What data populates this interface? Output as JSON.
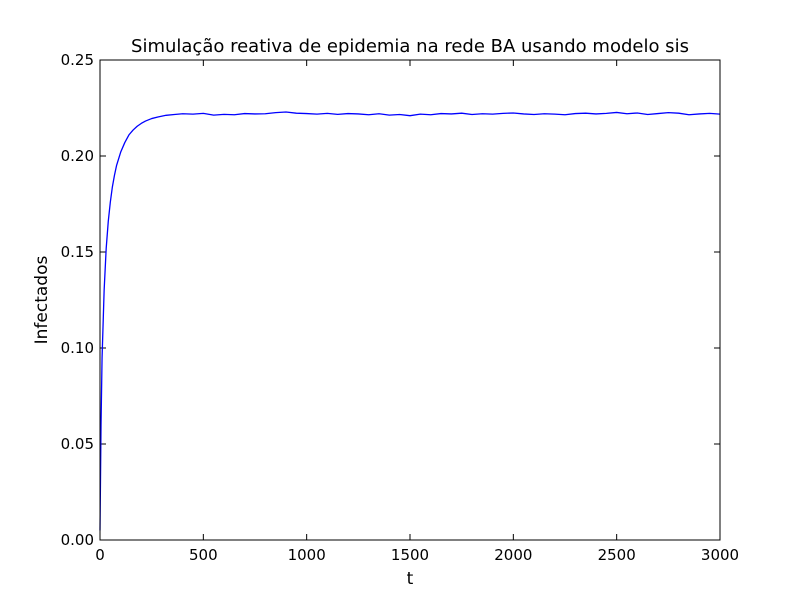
{
  "chart_data": {
    "type": "line",
    "title": "Simulação reativa de epidemia na rede BA usando modelo sis",
    "xlabel": "t",
    "ylabel": "Infectados",
    "xlim": [
      0,
      3000
    ],
    "ylim": [
      0,
      0.25
    ],
    "x_ticks": [
      "0",
      "500",
      "1000",
      "1500",
      "2000",
      "2500",
      "3000"
    ],
    "y_ticks": [
      "0.00",
      "0.05",
      "0.10",
      "0.15",
      "0.20",
      "0.25"
    ],
    "grid": false,
    "legend": "none",
    "series": [
      {
        "color": "#0000ff",
        "x": [
          0,
          5,
          10,
          20,
          30,
          40,
          50,
          60,
          70,
          80,
          100,
          120,
          140,
          160,
          180,
          200,
          220,
          250,
          280,
          320,
          360,
          400,
          450,
          500,
          550,
          600,
          650,
          700,
          750,
          800,
          850,
          900,
          950,
          1000,
          1050,
          1100,
          1150,
          1200,
          1250,
          1300,
          1350,
          1400,
          1450,
          1500,
          1550,
          1600,
          1650,
          1700,
          1750,
          1800,
          1850,
          1900,
          1950,
          2000,
          2050,
          2100,
          2150,
          2200,
          2250,
          2300,
          2350,
          2400,
          2450,
          2500,
          2550,
          2600,
          2650,
          2700,
          2750,
          2800,
          2850,
          2900,
          2950,
          3000
        ],
        "y": [
          0.005,
          0.06,
          0.095,
          0.13,
          0.152,
          0.166,
          0.176,
          0.184,
          0.19,
          0.195,
          0.202,
          0.207,
          0.211,
          0.2135,
          0.2155,
          0.217,
          0.2182,
          0.2195,
          0.2203,
          0.2212,
          0.2216,
          0.222,
          0.2218,
          0.2222,
          0.2213,
          0.2217,
          0.2215,
          0.2221,
          0.2219,
          0.222,
          0.2226,
          0.2229,
          0.2223,
          0.2221,
          0.2218,
          0.2222,
          0.2217,
          0.2221,
          0.2219,
          0.2215,
          0.222,
          0.2213,
          0.2216,
          0.221,
          0.2218,
          0.2215,
          0.2221,
          0.2219,
          0.2223,
          0.2216,
          0.222,
          0.2218,
          0.2222,
          0.2224,
          0.2219,
          0.2216,
          0.222,
          0.2218,
          0.2215,
          0.2221,
          0.2223,
          0.2219,
          0.2222,
          0.2227,
          0.222,
          0.2224,
          0.2216,
          0.2221,
          0.2226,
          0.2223,
          0.2215,
          0.2219,
          0.2222,
          0.2218
        ]
      }
    ]
  }
}
